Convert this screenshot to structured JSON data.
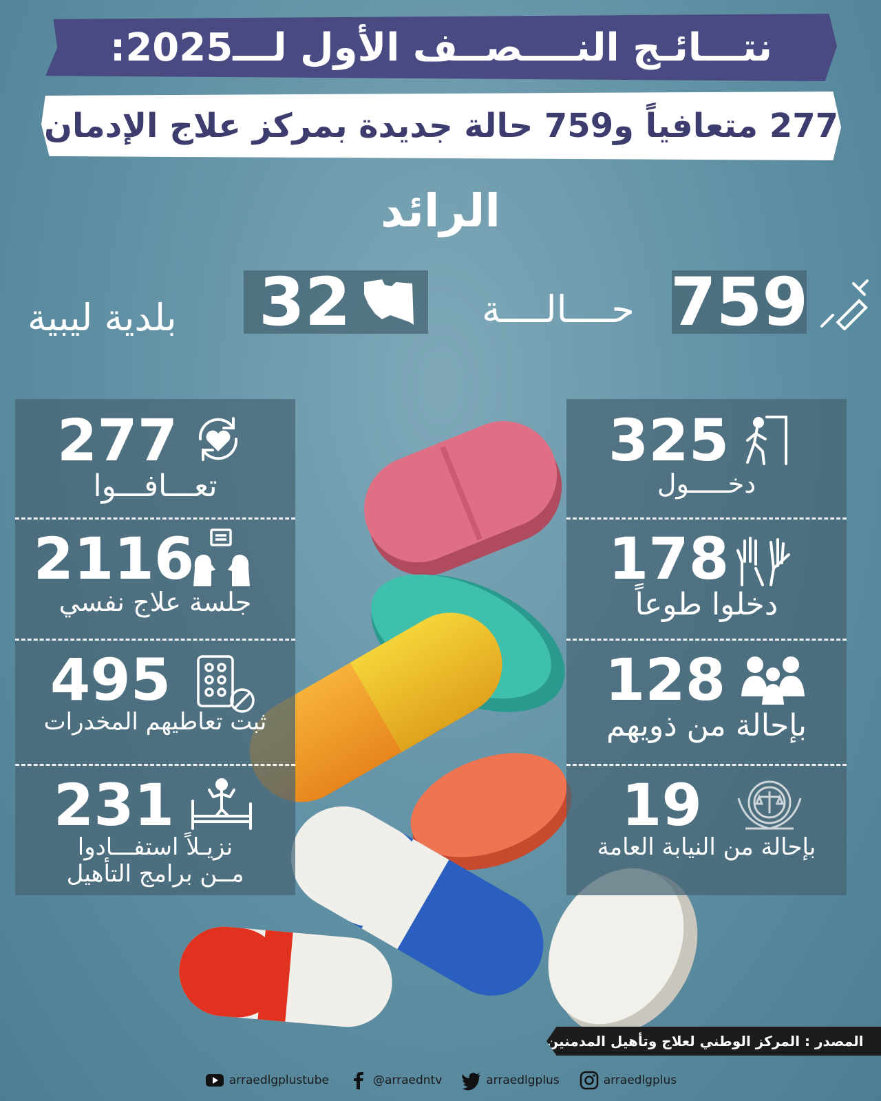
{
  "header": {
    "title": "نتـــائـج النــــصــف الأول لـــ2025:",
    "subtitle": "277 متعافياً و759 حالة جديدة بمركز علاج الإدمان",
    "brand": "الرائد"
  },
  "top_stats": {
    "cases": {
      "value": "759",
      "label": "حــــالــــة",
      "icon": "syringe-icon"
    },
    "municipalities": {
      "value": "32",
      "label": "بلدية ليبية",
      "icon": "libya-map-icon"
    }
  },
  "right_panel": [
    {
      "value": "325",
      "label": "دخـــــول",
      "icon": "walking-exit-icon"
    },
    {
      "value": "178",
      "label": "دخلوا طوعاً",
      "icon": "raised-hands-icon"
    },
    {
      "value": "128",
      "label": "بإحالة من ذويهم",
      "icon": "family-icon"
    },
    {
      "value": "19",
      "label": "بإحالة من النيابة العامة",
      "icon": "prosecution-emblem-icon"
    }
  ],
  "left_panel": [
    {
      "value": "277",
      "label": "تعـــافـــوا",
      "icon": "heart-recycle-icon"
    },
    {
      "value": "2116",
      "label": "جلسة علاج نفسي",
      "icon": "therapy-talk-icon"
    },
    {
      "value": "495",
      "label": "ثبت تعاطيهم المخدرات",
      "icon": "pills-blister-icon"
    },
    {
      "value": "231",
      "label_line1": "نزيـلاً استفـــادوا",
      "label_line2": "مــن برامج التأهيل",
      "icon": "rehab-bed-icon"
    }
  ],
  "footer": {
    "source": "المصدر : المركز الوطني لعلاج وتأهيل المدمنين",
    "socials": [
      {
        "icon": "youtube-icon",
        "handle": "arraedlgplustube"
      },
      {
        "icon": "facebook-icon",
        "handle": "@arraedntv"
      },
      {
        "icon": "twitter-icon",
        "handle": "arraedlgplus"
      },
      {
        "icon": "instagram-icon",
        "handle": "arraedlgplus"
      }
    ]
  },
  "colors": {
    "banner_purple": "#4a4a82",
    "panel_overlay": "#46647380",
    "background": "#5f8fa3"
  }
}
